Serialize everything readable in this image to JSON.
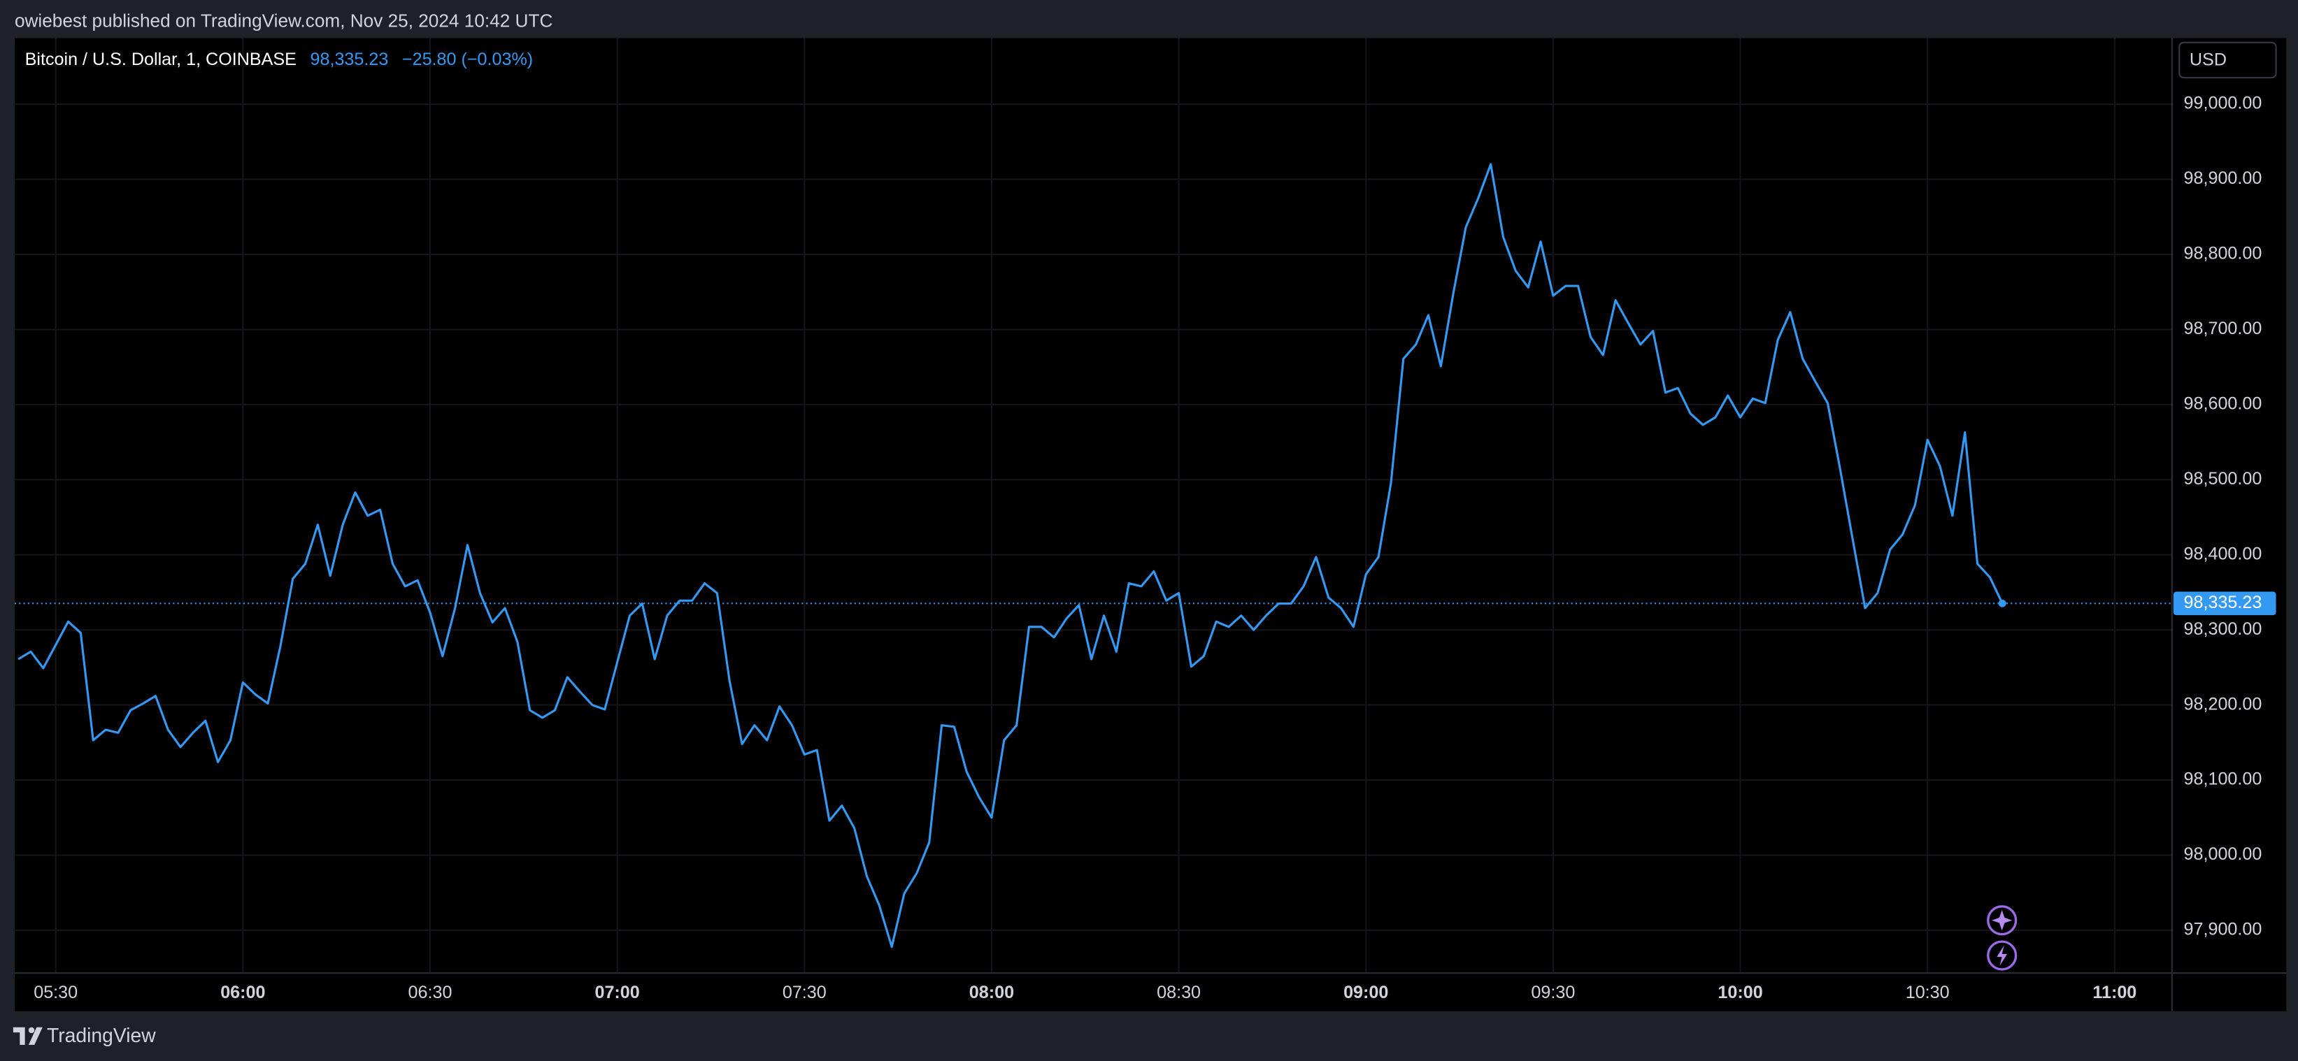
{
  "chart_data": {
    "type": "line",
    "publisher_note": "owiebest published on TradingView.com, Nov 25, 2024 10:42 UTC",
    "title": "Bitcoin / U.S. Dollar, 1, COINBASE",
    "last_price": {
      "value": 98335.23,
      "label": "98,335.23"
    },
    "change_label": "−25.80 (−0.03%)",
    "currency": "USD",
    "brand": "TradingView",
    "color": "#3399f3",
    "grid": true,
    "x": [
      "05:24",
      "05:26",
      "05:28",
      "05:30",
      "05:32",
      "05:34",
      "05:36",
      "05:38",
      "05:40",
      "05:42",
      "05:44",
      "05:46",
      "05:48",
      "05:50",
      "05:52",
      "05:54",
      "05:56",
      "05:58",
      "06:00",
      "06:02",
      "06:04",
      "06:06",
      "06:08",
      "06:10",
      "06:12",
      "06:14",
      "06:16",
      "06:18",
      "06:20",
      "06:22",
      "06:24",
      "06:26",
      "06:28",
      "06:30",
      "06:32",
      "06:34",
      "06:36",
      "06:38",
      "06:40",
      "06:42",
      "06:44",
      "06:46",
      "06:48",
      "06:50",
      "06:52",
      "06:54",
      "06:56",
      "06:58",
      "07:00",
      "07:02",
      "07:04",
      "07:06",
      "07:08",
      "07:10",
      "07:12",
      "07:14",
      "07:16",
      "07:18",
      "07:20",
      "07:22",
      "07:24",
      "07:26",
      "07:28",
      "07:30",
      "07:32",
      "07:34",
      "07:36",
      "07:38",
      "07:40",
      "07:42",
      "07:44",
      "07:46",
      "07:48",
      "07:50",
      "07:52",
      "07:54",
      "07:56",
      "07:58",
      "08:00",
      "08:02",
      "08:04",
      "08:06",
      "08:08",
      "08:10",
      "08:12",
      "08:14",
      "08:16",
      "08:18",
      "08:20",
      "08:22",
      "08:24",
      "08:26",
      "08:28",
      "08:30",
      "08:32",
      "08:34",
      "08:36",
      "08:38",
      "08:40",
      "08:42",
      "08:44",
      "08:46",
      "08:48",
      "08:50",
      "08:52",
      "08:54",
      "08:56",
      "08:58",
      "09:00",
      "09:02",
      "09:04",
      "09:06",
      "09:08",
      "09:10",
      "09:12",
      "09:14",
      "09:16",
      "09:18",
      "09:20",
      "09:22",
      "09:24",
      "09:26",
      "09:28",
      "09:30",
      "09:32",
      "09:34",
      "09:36",
      "09:38",
      "09:40",
      "09:42",
      "09:44",
      "09:46",
      "09:48",
      "09:50",
      "09:52",
      "09:54",
      "09:56",
      "09:58",
      "10:00",
      "10:02",
      "10:04",
      "10:06",
      "10:08",
      "10:10",
      "10:12",
      "10:14",
      "10:16",
      "10:18",
      "10:20",
      "10:22",
      "10:24",
      "10:26",
      "10:28",
      "10:30",
      "10:32",
      "10:34",
      "10:36",
      "10:38",
      "10:40",
      "10:42"
    ],
    "values": [
      98261,
      98271,
      98249,
      98280,
      98311,
      98296,
      98153,
      98167,
      98163,
      98193,
      98202,
      98212,
      98167,
      98144,
      98163,
      98179,
      98124,
      98153,
      98230,
      98214,
      98202,
      98278,
      98368,
      98388,
      98440,
      98372,
      98440,
      98483,
      98452,
      98460,
      98388,
      98358,
      98366,
      98323,
      98265,
      98329,
      98413,
      98349,
      98310,
      98329,
      98284,
      98193,
      98183,
      98193,
      98237,
      98218,
      98200,
      98194,
      98257,
      98319,
      98335,
      98261,
      98319,
      98339,
      98339,
      98362,
      98349,
      98232,
      98148,
      98173,
      98153,
      98198,
      98173,
      98134,
      98140,
      98046,
      98066,
      98036,
      97972,
      97933,
      97878,
      97949,
      97976,
      98017,
      98173,
      98171,
      98111,
      98077,
      98050,
      98153,
      98173,
      98304,
      98304,
      98290,
      98315,
      98333,
      98261,
      98319,
      98271,
      98362,
      98358,
      98378,
      98339,
      98349,
      98251,
      98265,
      98311,
      98304,
      98319,
      98300,
      98319,
      98335,
      98335,
      98358,
      98397,
      98343,
      98329,
      98304,
      98374,
      98397,
      98495,
      98661,
      98680,
      98719,
      98651,
      98748,
      98836,
      98875,
      98920,
      98823,
      98778,
      98756,
      98817,
      98745,
      98758,
      98758,
      98690,
      98666,
      98739,
      98709,
      98680,
      98698,
      98616,
      98622,
      98588,
      98573,
      98583,
      98612,
      98583,
      98608,
      98602,
      98686,
      98723,
      98661,
      98631,
      98602,
      98514,
      98421,
      98329,
      98349,
      98407,
      98427,
      98466,
      98553,
      98518,
      98452,
      98563,
      98388,
      98370,
      98335.23
    ],
    "xlim": [
      "05:23:25",
      "11:09:11"
    ],
    "xticks": [
      "05:30",
      "06:00",
      "06:30",
      "07:00",
      "07:30",
      "08:00",
      "08:30",
      "09:00",
      "09:30",
      "10:00",
      "10:30",
      "11:00"
    ],
    "ylim": [
      97843,
      99088
    ],
    "yticks": [
      {
        "value": 97900,
        "label": "97,900.00"
      },
      {
        "value": 98000,
        "label": "98,000.00"
      },
      {
        "value": 98100,
        "label": "98,100.00"
      },
      {
        "value": 98200,
        "label": "98,200.00"
      },
      {
        "value": 98300,
        "label": "98,300.00"
      },
      {
        "value": 98400,
        "label": "98,400.00"
      },
      {
        "value": 98500,
        "label": "98,500.00"
      },
      {
        "value": 98600,
        "label": "98,600.00"
      },
      {
        "value": 98700,
        "label": "98,700.00"
      },
      {
        "value": 98800,
        "label": "98,800.00"
      },
      {
        "value": 98900,
        "label": "98,900.00"
      },
      {
        "value": 99000,
        "label": "99,000.00"
      }
    ]
  }
}
